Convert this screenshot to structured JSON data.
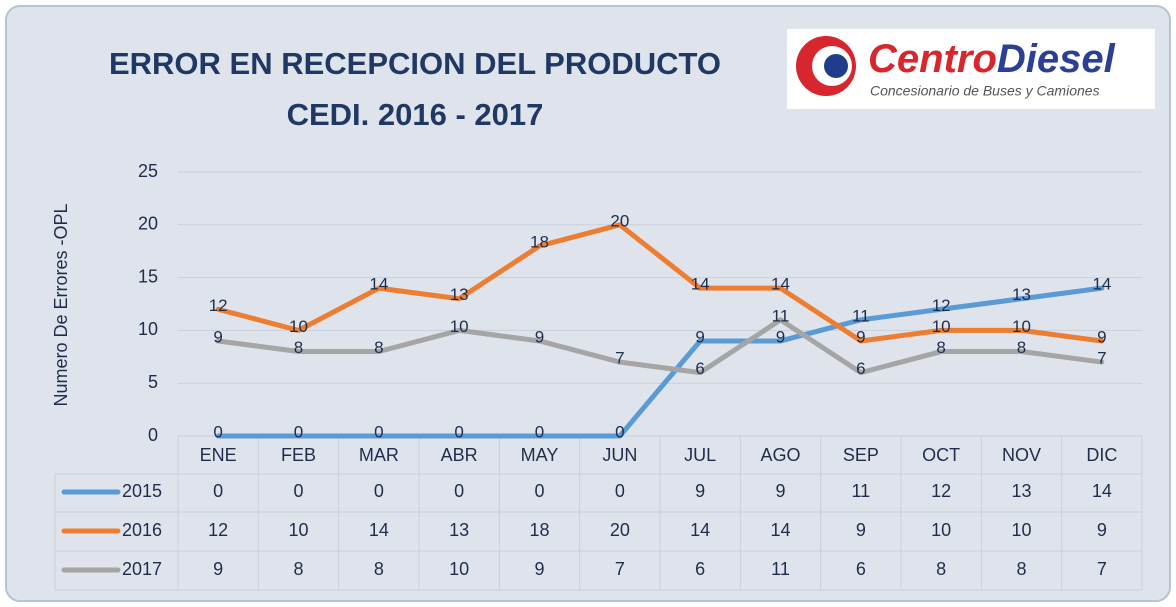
{
  "chart_data": {
    "type": "line",
    "title": [
      "ERROR EN RECEPCION DEL PRODUCTO",
      "CEDI. 2016 - 2017"
    ],
    "y_label": "Numero De Errores -OPL",
    "categories": [
      "ENE",
      "FEB",
      "MAR",
      "ABR",
      "MAY",
      "JUN",
      "JUL",
      "AGO",
      "SEP",
      "OCT",
      "NOV",
      "DIC"
    ],
    "series": [
      {
        "name": "2015",
        "color": "#5b9bd5",
        "values": [
          0,
          0,
          0,
          0,
          0,
          0,
          9,
          9,
          11,
          12,
          13,
          14
        ]
      },
      {
        "name": "2016",
        "color": "#ed7d31",
        "values": [
          12,
          10,
          14,
          13,
          18,
          20,
          14,
          14,
          9,
          10,
          10,
          9
        ]
      },
      {
        "name": "2017",
        "color": "#a5a5a5",
        "values": [
          9,
          8,
          8,
          10,
          9,
          7,
          6,
          11,
          6,
          8,
          8,
          7
        ]
      }
    ],
    "ylim": [
      0,
      25
    ],
    "yticks": [
      0,
      5,
      10,
      15,
      20,
      25
    ],
    "grid": true,
    "data_labels": true,
    "data_table": true
  },
  "logo": {
    "name_a": "Centro",
    "name_b": "Diesel",
    "tagline": "Concesionario de Buses y Camiones"
  }
}
